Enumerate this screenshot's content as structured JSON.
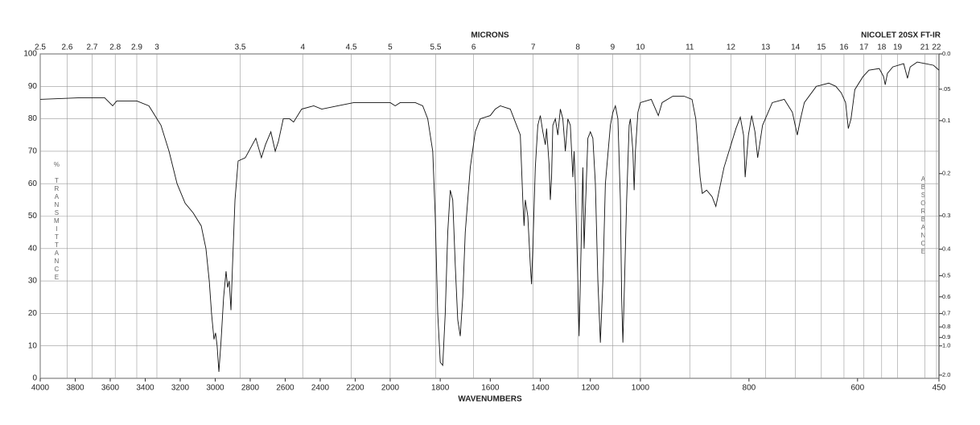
{
  "chart_data": {
    "type": "line",
    "title": "NICOLET 20SX FT-IR",
    "x2label": "MICRONS",
    "xlabel": "WAVENUMBERS",
    "ylabel": "% TRANSMITTANCE",
    "y2label": "ABSORBANCE",
    "color": "#111111",
    "grid": true,
    "xlim": [
      4000,
      450
    ],
    "xbreaks": [
      2000,
      1000
    ],
    "xticks": [
      4000,
      3800,
      3600,
      3400,
      3200,
      3000,
      2800,
      2600,
      2400,
      2200,
      2000,
      1800,
      1600,
      1400,
      1200,
      1000,
      800,
      600,
      450
    ],
    "x2scale": "reciprocal",
    "x2ticks": [
      2.5,
      2.6,
      2.7,
      2.8,
      2.9,
      3,
      3.5,
      4,
      4.5,
      5,
      5.5,
      6,
      7,
      8,
      9,
      10,
      11,
      12,
      13,
      14,
      15,
      16,
      17,
      18,
      19,
      21,
      22
    ],
    "ylim": [
      0,
      100
    ],
    "yticks": [
      0,
      10,
      20,
      30,
      40,
      50,
      60,
      70,
      80,
      90,
      100
    ],
    "y2scale": "absorbance",
    "y2ticks": [
      {
        "value": 0,
        "label": "0.0"
      },
      {
        "value": 0.05,
        "label": ".05"
      },
      0.1,
      0.2,
      0.3,
      0.4,
      0.5,
      0.6,
      0.7,
      0.8,
      0.9,
      {
        "value": 1,
        "label": "1.0"
      },
      {
        "value": 2,
        "label": "2.0"
      }
    ],
    "x": [
      4000,
      3770,
      3632,
      3586,
      3563,
      3448,
      3379,
      3356,
      3310,
      3264,
      3218,
      3172,
      3126,
      3080,
      3053,
      3034,
      3021,
      3007,
      2998,
      2989,
      2979,
      2966,
      2952,
      2938,
      2929,
      2920,
      2910,
      2901,
      2887,
      2869,
      2828,
      2768,
      2736,
      2713,
      2682,
      2657,
      2639,
      2611,
      2575,
      2552,
      2506,
      2437,
      2391,
      2299,
      2207,
      2115,
      2000,
      1980,
      1960,
      1900,
      1870,
      1850,
      1830,
      1820,
      1810,
      1800,
      1790,
      1780,
      1770,
      1760,
      1750,
      1740,
      1730,
      1720,
      1710,
      1700,
      1680,
      1660,
      1640,
      1600,
      1580,
      1560,
      1520,
      1480,
      1470,
      1465,
      1460,
      1450,
      1440,
      1435,
      1430,
      1420,
      1410,
      1400,
      1390,
      1380,
      1375,
      1365,
      1360,
      1355,
      1350,
      1340,
      1330,
      1320,
      1310,
      1300,
      1290,
      1280,
      1270,
      1265,
      1260,
      1250,
      1245,
      1240,
      1230,
      1225,
      1220,
      1210,
      1200,
      1190,
      1180,
      1170,
      1160,
      1150,
      1140,
      1120,
      1110,
      1100,
      1090,
      1080,
      1075,
      1070,
      1065,
      1055,
      1045,
      1040,
      1030,
      1025,
      1020,
      1010,
      1000,
      980,
      967,
      960,
      940,
      920,
      905,
      898,
      890,
      886,
      878,
      868,
      861,
      846,
      824,
      816,
      810,
      807,
      801,
      795,
      789,
      784,
      775,
      757,
      735,
      720,
      711,
      705,
      698,
      676,
      653,
      640,
      630,
      622,
      617,
      612,
      605,
      590,
      579,
      560,
      552,
      549,
      545,
      535,
      515,
      508,
      503,
      490,
      475,
      460,
      450
    ],
    "values": [
      86,
      86.5,
      86.5,
      84,
      85.5,
      85.5,
      84,
      82,
      78,
      70,
      60,
      54,
      51,
      47,
      40,
      30,
      20,
      12,
      14,
      10,
      2,
      12,
      25,
      33,
      28,
      30,
      21,
      35,
      55,
      67,
      68,
      74,
      68,
      72,
      76,
      70,
      73,
      80,
      80,
      79,
      83,
      84,
      83,
      84,
      85,
      85,
      85,
      84,
      85,
      85,
      84,
      80,
      70,
      50,
      20,
      5,
      4,
      20,
      45,
      58,
      55,
      35,
      18,
      13,
      25,
      45,
      65,
      76,
      80,
      81,
      83,
      84,
      83,
      75,
      55,
      47,
      55,
      50,
      35,
      29,
      40,
      65,
      78,
      81,
      76,
      72,
      77,
      66,
      55,
      62,
      78,
      80,
      75,
      83,
      80,
      70,
      80,
      78,
      62,
      70,
      60,
      30,
      13,
      30,
      65,
      40,
      52,
      74,
      76,
      74,
      60,
      30,
      11,
      30,
      60,
      78,
      82,
      84,
      80,
      55,
      25,
      11,
      25,
      55,
      78,
      80,
      70,
      58,
      70,
      82,
      85,
      86,
      81,
      85,
      87,
      87,
      86,
      80,
      62,
      57,
      58,
      56,
      53,
      65,
      77,
      80.5,
      75,
      62,
      75,
      81,
      76,
      68,
      78,
      85,
      86,
      82,
      75,
      80,
      85,
      90,
      91,
      90,
      88,
      85,
      77,
      80,
      89,
      93,
      95,
      95.5,
      93,
      90.5,
      94,
      96,
      97,
      92.5,
      96,
      97.5,
      97,
      96.5,
      95
    ]
  }
}
